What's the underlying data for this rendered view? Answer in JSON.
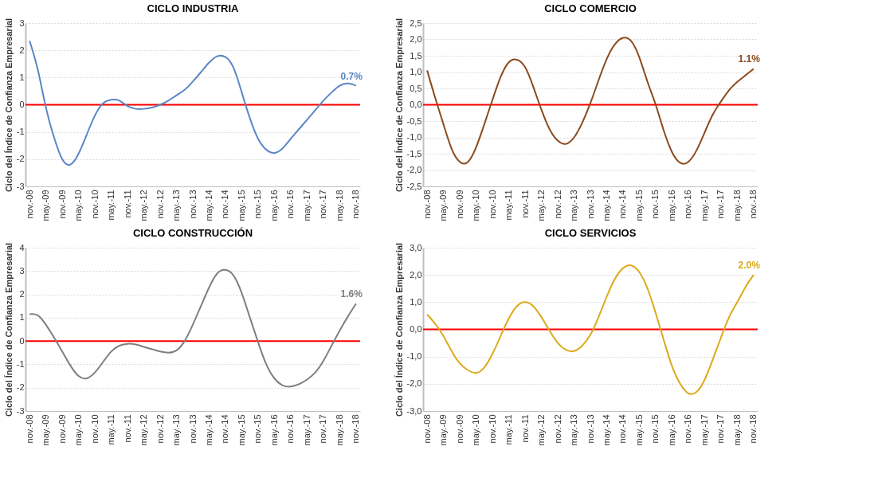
{
  "chart_data": [
    {
      "type": "line",
      "title": "CICLO INDUSTRIA",
      "ylabel": "Ciclo del Índice de Confianza Empresarial",
      "categories": [
        "nov.-08",
        null,
        "may.-09",
        null,
        "nov.-09",
        null,
        "may.-10",
        null,
        "nov.-10",
        null,
        "may.-11",
        null,
        "nov.-11",
        null,
        "may.-12",
        null,
        "nov.-12",
        null,
        "may.-13",
        null,
        "nov.-13",
        null,
        "may.-14",
        null,
        "nov.-14",
        null,
        "may.-15",
        null,
        "nov.-15",
        null,
        "may.-16",
        null,
        "nov.-16",
        null,
        "may.-17",
        null,
        "nov.-17",
        null,
        "may.-18",
        null,
        "nov.-18"
      ],
      "series": [
        {
          "color": "#5a87c5",
          "values": [
            2.35,
            1.3,
            -0.1,
            -1.2,
            -2.0,
            -2.2,
            -1.8,
            -1.1,
            -0.4,
            0.05,
            0.18,
            0.15,
            -0.05,
            -0.15,
            -0.15,
            -0.1,
            0.0,
            0.15,
            0.35,
            0.55,
            0.85,
            1.2,
            1.55,
            1.78,
            1.75,
            1.35,
            0.45,
            -0.5,
            -1.25,
            -1.65,
            -1.77,
            -1.6,
            -1.25,
            -0.9,
            -0.55,
            -0.2,
            0.15,
            0.45,
            0.7,
            0.78,
            0.7
          ]
        }
      ],
      "ylim": [
        -3,
        3
      ],
      "yticks": [
        -3,
        -2,
        -1,
        0,
        1,
        2,
        3
      ],
      "ref_lines": [
        {
          "axis": "y",
          "value": 0,
          "color": "#ff0000"
        }
      ],
      "annotations": [
        {
          "text": "0.7%",
          "x": "nov.-18",
          "y": 0.7
        }
      ],
      "grid": "y",
      "legend": false,
      "marker": "none",
      "line_style": "solid"
    },
    {
      "type": "line",
      "title": "CICLO COMERCIO",
      "ylabel": "Ciclo del Índice de Confianza Empresarial",
      "categories": [
        "nov.-08",
        null,
        "may.-09",
        null,
        "nov.-09",
        null,
        "may.-10",
        null,
        "nov.-10",
        null,
        "may.-11",
        null,
        "nov.-11",
        null,
        "may.-12",
        null,
        "nov.-12",
        null,
        "may.-13",
        null,
        "nov.-13",
        null,
        "may.-14",
        null,
        "nov.-14",
        null,
        "may.-15",
        null,
        "nov.-15",
        null,
        "may.-16",
        null,
        "nov.-16",
        null,
        "may.-17",
        null,
        "nov.-17",
        null,
        "may.-18",
        null,
        "nov.-18"
      ],
      "series": [
        {
          "color": "#8b4a1c",
          "values": [
            1.05,
            0.2,
            -0.6,
            -1.35,
            -1.75,
            -1.75,
            -1.3,
            -0.6,
            0.15,
            0.85,
            1.3,
            1.38,
            1.15,
            0.55,
            -0.15,
            -0.75,
            -1.1,
            -1.2,
            -1.0,
            -0.55,
            0.05,
            0.75,
            1.4,
            1.85,
            2.05,
            1.95,
            1.45,
            0.7,
            0.0,
            -0.8,
            -1.45,
            -1.78,
            -1.75,
            -1.4,
            -0.85,
            -0.3,
            0.1,
            0.45,
            0.7,
            0.9,
            1.1
          ]
        }
      ],
      "ylim": [
        -2.5,
        2.5
      ],
      "yticks": [
        {
          "value": -2.5,
          "label": "-2,5"
        },
        {
          "value": -2,
          "label": "-2,0"
        },
        {
          "value": -1.5,
          "label": "-1,5"
        },
        {
          "value": -1,
          "label": "-1,0"
        },
        {
          "value": -0.5,
          "label": "-0,5"
        },
        {
          "value": 0,
          "label": "0,0"
        },
        {
          "value": 0.5,
          "label": "0,5"
        },
        {
          "value": 1,
          "label": "1,0"
        },
        {
          "value": 1.5,
          "label": "1,5"
        },
        {
          "value": 2,
          "label": "2,0"
        },
        {
          "value": 2.5,
          "label": "2,5"
        }
      ],
      "ref_lines": [
        {
          "axis": "y",
          "value": 0,
          "color": "#ff0000"
        }
      ],
      "annotations": [
        {
          "text": "1.1%",
          "x": "nov.-18",
          "y": 1.1
        }
      ],
      "grid": "y",
      "legend": false,
      "marker": "none",
      "line_style": "solid"
    },
    {
      "type": "line",
      "title": "CICLO CONSTRUCCIÓN",
      "ylabel": "Ciclo del Índice de Confianza Empresarial",
      "categories": [
        "nov.-08",
        null,
        "may.-09",
        null,
        "nov.-09",
        null,
        "may.-10",
        null,
        "nov.-10",
        null,
        "may.-11",
        null,
        "nov.-11",
        null,
        "may.-12",
        null,
        "nov.-12",
        null,
        "may.-13",
        null,
        "nov.-13",
        null,
        "may.-14",
        null,
        "nov.-14",
        null,
        "may.-15",
        null,
        "nov.-15",
        null,
        "may.-16",
        null,
        "nov.-16",
        null,
        "may.-17",
        null,
        "nov.-17",
        null,
        "may.-18",
        null,
        "nov.-18"
      ],
      "series": [
        {
          "color": "#7f7f7f",
          "values": [
            1.15,
            1.1,
            0.7,
            0.15,
            -0.45,
            -1.05,
            -1.5,
            -1.6,
            -1.35,
            -0.9,
            -0.45,
            -0.2,
            -0.12,
            -0.15,
            -0.25,
            -0.35,
            -0.45,
            -0.5,
            -0.4,
            0.0,
            0.7,
            1.5,
            2.3,
            2.9,
            3.05,
            2.8,
            2.05,
            1.0,
            -0.05,
            -1.0,
            -1.6,
            -1.9,
            -1.95,
            -1.85,
            -1.65,
            -1.35,
            -0.85,
            -0.2,
            0.45,
            1.05,
            1.6
          ]
        }
      ],
      "ylim": [
        -3,
        4
      ],
      "yticks": [
        -3,
        -2,
        -1,
        0,
        1,
        2,
        3,
        4
      ],
      "ref_lines": [
        {
          "axis": "y",
          "value": 0,
          "color": "#ff0000"
        }
      ],
      "annotations": [
        {
          "text": "1.6%",
          "x": "nov.-18",
          "y": 1.6
        }
      ],
      "grid": "y",
      "legend": false,
      "marker": "none",
      "line_style": "solid"
    },
    {
      "type": "line",
      "title": "CICLO SERVICIOS",
      "ylabel": "Ciclo del Índice de Confianza Empresarial",
      "categories": [
        "nov.-08",
        null,
        "may.-09",
        null,
        "nov.-09",
        null,
        "may.-10",
        null,
        "nov.-10",
        null,
        "may.-11",
        null,
        "nov.-11",
        null,
        "may.-12",
        null,
        "nov.-12",
        null,
        "may.-13",
        null,
        "nov.-13",
        null,
        "may.-14",
        null,
        "nov.-14",
        null,
        "may.-15",
        null,
        "nov.-15",
        null,
        "may.-16",
        null,
        "nov.-16",
        null,
        "may.-17",
        null,
        "nov.-17",
        null,
        "may.-18",
        null,
        "nov.-18"
      ],
      "series": [
        {
          "color": "#dcaa1a",
          "values": [
            0.55,
            0.2,
            -0.25,
            -0.8,
            -1.25,
            -1.5,
            -1.6,
            -1.4,
            -0.9,
            -0.25,
            0.4,
            0.85,
            1.0,
            0.85,
            0.45,
            -0.05,
            -0.5,
            -0.75,
            -0.8,
            -0.6,
            -0.2,
            0.45,
            1.2,
            1.85,
            2.25,
            2.35,
            2.1,
            1.5,
            0.6,
            -0.4,
            -1.35,
            -2.0,
            -2.35,
            -2.3,
            -1.85,
            -1.1,
            -0.3,
            0.45,
            1.0,
            1.55,
            2.0
          ]
        }
      ],
      "ylim": [
        -3,
        3
      ],
      "yticks": [
        {
          "value": -3,
          "label": "-3,0"
        },
        {
          "value": -2,
          "label": "-2,0"
        },
        {
          "value": -1,
          "label": "-1,0"
        },
        {
          "value": 0,
          "label": "0,0"
        },
        {
          "value": 1,
          "label": "1,0"
        },
        {
          "value": 2,
          "label": "2,0"
        },
        {
          "value": 3,
          "label": "3,0"
        }
      ],
      "ref_lines": [
        {
          "axis": "y",
          "value": 0,
          "color": "#ff0000"
        }
      ],
      "annotations": [
        {
          "text": "2.0%",
          "x": "nov.-18",
          "y": 2.0
        }
      ],
      "grid": "y",
      "legend": false,
      "marker": "none",
      "line_style": "solid"
    }
  ]
}
